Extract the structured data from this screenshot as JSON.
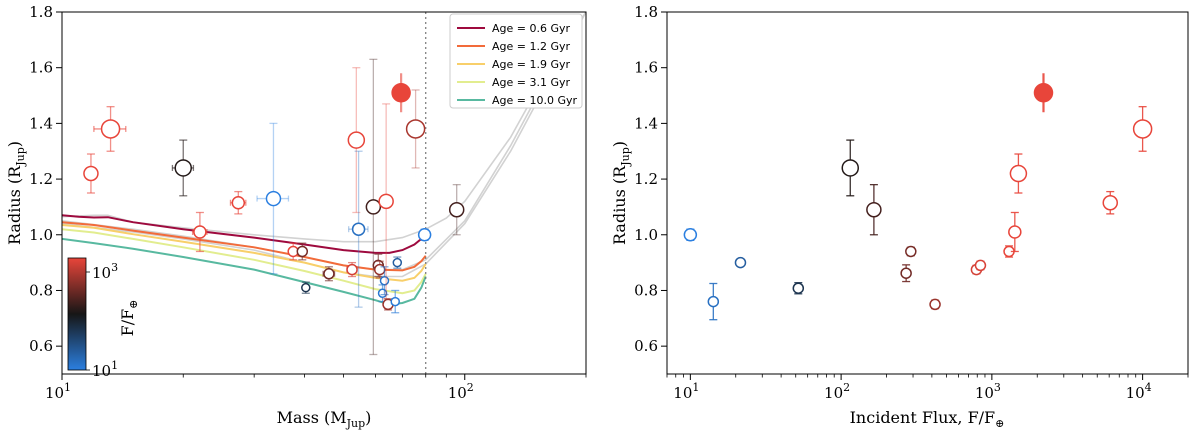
{
  "chart_data": [
    {
      "type": "scatter",
      "x_scale": "log",
      "xlim": [
        10,
        200
      ],
      "ylim": [
        0.5,
        1.8
      ],
      "xlabel_base": "Mass (M",
      "xlabel_sub": "Jup",
      "xlabel_end": ")",
      "ylabel_base": "Radius (R",
      "ylabel_sub": "Jup",
      "ylabel_end": ")",
      "x_ticks": [
        {
          "value": 10,
          "base": "10",
          "exp": "1"
        },
        {
          "value": 100,
          "base": "10",
          "exp": "2"
        }
      ],
      "y_ticks": [
        "0.6",
        "0.8",
        "1.0",
        "1.2",
        "1.4",
        "1.6",
        "1.8"
      ],
      "vline_x": 80,
      "legend_position": "top-right",
      "isochrones": [
        {
          "name": "Age = 0.6 Gyr",
          "color": "#9e0a3e",
          "points": [
            [
              10,
              1.07
            ],
            [
              11,
              1.065
            ],
            [
              12,
              1.062
            ],
            [
              13,
              1.063
            ],
            [
              15,
              1.045
            ],
            [
              20,
              1.02
            ],
            [
              30,
              0.99
            ],
            [
              40,
              0.965
            ],
            [
              50,
              0.945
            ],
            [
              60,
              0.935
            ],
            [
              65,
              0.935
            ],
            [
              70,
              0.945
            ],
            [
              75,
              0.965
            ],
            [
              78,
              0.985
            ],
            [
              80,
              1.0
            ]
          ]
        },
        {
          "name": "Age = 1.2 Gyr",
          "color": "#f26b3a",
          "points": [
            [
              10,
              1.045
            ],
            [
              12,
              1.035
            ],
            [
              15,
              1.015
            ],
            [
              20,
              0.99
            ],
            [
              30,
              0.955
            ],
            [
              40,
              0.92
            ],
            [
              50,
              0.89
            ],
            [
              60,
              0.875
            ],
            [
              70,
              0.872
            ],
            [
              75,
              0.885
            ],
            [
              78,
              0.905
            ],
            [
              80,
              0.925
            ]
          ]
        },
        {
          "name": "Age = 1.9 Gyr",
          "color": "#f8cf6a",
          "points": [
            [
              10,
              1.035
            ],
            [
              12,
              1.025
            ],
            [
              15,
              1.002
            ],
            [
              20,
              0.975
            ],
            [
              30,
              0.935
            ],
            [
              40,
              0.9
            ],
            [
              50,
              0.865
            ],
            [
              60,
              0.845
            ],
            [
              70,
              0.835
            ],
            [
              75,
              0.845
            ],
            [
              78,
              0.87
            ],
            [
              80,
              0.895
            ]
          ]
        },
        {
          "name": "Age = 3.1 Gyr",
          "color": "#e2ed8f",
          "points": [
            [
              10,
              1.02
            ],
            [
              12,
              1.008
            ],
            [
              15,
              0.985
            ],
            [
              20,
              0.955
            ],
            [
              30,
              0.91
            ],
            [
              40,
              0.87
            ],
            [
              50,
              0.835
            ],
            [
              60,
              0.805
            ],
            [
              70,
              0.79
            ],
            [
              75,
              0.8
            ],
            [
              78,
              0.83
            ],
            [
              80,
              0.86
            ]
          ]
        },
        {
          "name": "Age = 10.0 Gyr",
          "color": "#58b9a0",
          "points": [
            [
              10,
              0.985
            ],
            [
              12,
              0.97
            ],
            [
              15,
              0.95
            ],
            [
              20,
              0.92
            ],
            [
              30,
              0.875
            ],
            [
              40,
              0.83
            ],
            [
              50,
              0.795
            ],
            [
              60,
              0.765
            ],
            [
              65,
              0.75
            ],
            [
              70,
              0.755
            ],
            [
              75,
              0.77
            ],
            [
              78,
              0.81
            ],
            [
              80,
              0.85
            ]
          ]
        }
      ],
      "gray_tracks": [
        [
          [
            10,
            1.065
          ],
          [
            12,
            1.07
          ],
          [
            13,
            1.07
          ],
          [
            15,
            1.045
          ],
          [
            20,
            1.025
          ],
          [
            30,
            1.0
          ],
          [
            40,
            0.985
          ],
          [
            50,
            0.975
          ],
          [
            60,
            0.975
          ],
          [
            70,
            0.99
          ],
          [
            80,
            1.02
          ],
          [
            90,
            1.06
          ],
          [
            100,
            1.12
          ],
          [
            130,
            1.35
          ],
          [
            165,
            1.62
          ],
          [
            200,
            1.8
          ]
        ],
        [
          [
            10,
            1.05
          ],
          [
            15,
            1.02
          ],
          [
            20,
            0.995
          ],
          [
            30,
            0.955
          ],
          [
            40,
            0.92
          ],
          [
            50,
            0.89
          ],
          [
            60,
            0.875
          ],
          [
            70,
            0.875
          ],
          [
            80,
            0.91
          ],
          [
            100,
            1.05
          ],
          [
            130,
            1.32
          ],
          [
            165,
            1.6
          ],
          [
            200,
            1.8
          ]
        ],
        [
          [
            10,
            1.04
          ],
          [
            15,
            1.01
          ],
          [
            20,
            0.985
          ],
          [
            30,
            0.945
          ],
          [
            40,
            0.9
          ],
          [
            50,
            0.865
          ],
          [
            60,
            0.85
          ],
          [
            70,
            0.85
          ],
          [
            80,
            0.895
          ],
          [
            100,
            1.04
          ],
          [
            130,
            1.3
          ],
          [
            165,
            1.58
          ],
          [
            200,
            1.8
          ]
        ]
      ],
      "colorbar": {
        "label_base": "F/F",
        "label_sub": "⊕",
        "ticks": [
          {
            "base": "10",
            "exp": "3",
            "value": 1000
          },
          {
            "base": "10",
            "exp": "1",
            "value": 10
          }
        ]
      },
      "points": [
        {
          "x": 11.8,
          "y": 1.22,
          "xerr": 0.4,
          "yerr": 0.07,
          "flux": 1400,
          "size": 7
        },
        {
          "x": 13.2,
          "y": 1.38,
          "xerr": 1.2,
          "yerr": 0.08,
          "flux": 10000,
          "size": 9
        },
        {
          "x": 20,
          "y": 1.24,
          "xerr": 1.2,
          "yerr": 0.1,
          "flux": 115,
          "size": 8
        },
        {
          "x": 22,
          "y": 1.01,
          "xerr": 0.9,
          "yerr": 0.07,
          "flux": 1450,
          "size": 6
        },
        {
          "x": 27.4,
          "y": 1.115,
          "xerr": 1.2,
          "yerr": 0.04,
          "flux": 6100,
          "size": 6
        },
        {
          "x": 33.5,
          "y": 1.13,
          "xerr": 3,
          "yerr": 0.27,
          "flux": 10,
          "size": 7
        },
        {
          "x": 37.5,
          "y": 0.94,
          "xerr": 0.7,
          "yerr": 0.03,
          "flux": 1300,
          "size": 5
        },
        {
          "x": 39.5,
          "y": 0.94,
          "xerr": 0.7,
          "yerr": 0.03,
          "flux": 290,
          "size": 5
        },
        {
          "x": 40.3,
          "y": 0.81,
          "xerr": 0.5,
          "yerr": 0.02,
          "flux": 52,
          "size": 4
        },
        {
          "x": 46,
          "y": 0.86,
          "xerr": 1.5,
          "yerr": 0.025,
          "flux": 270,
          "size": 5
        },
        {
          "x": 52.5,
          "y": 0.875,
          "xerr": 1.5,
          "yerr": 0.025,
          "flux": 800,
          "size": 5
        },
        {
          "x": 53.8,
          "y": 1.34,
          "xerr": 1.5,
          "yerr": 0.26,
          "flux": 1550,
          "size": 8
        },
        {
          "x": 54.5,
          "y": 1.02,
          "xerr": 3,
          "yerr": 0.28,
          "flux": 14,
          "size": 6
        },
        {
          "x": 59.3,
          "y": 1.1,
          "xerr": 1.2,
          "yerr": 0.53,
          "flux": 160,
          "size": 7
        },
        {
          "x": 61,
          "y": 0.89,
          "xerr": 1,
          "yerr": 0.04,
          "flux": 270,
          "size": 5
        },
        {
          "x": 61.5,
          "y": 0.875,
          "xerr": 0.8,
          "yerr": 0.03,
          "flux": 400,
          "size": 5
        },
        {
          "x": 62.5,
          "y": 0.79,
          "xerr": 1,
          "yerr": 0.03,
          "flux": 12,
          "size": 4
        },
        {
          "x": 63.2,
          "y": 0.835,
          "xerr": 1,
          "yerr": 0.05,
          "flux": 13,
          "size": 4
        },
        {
          "x": 63.8,
          "y": 1.12,
          "xerr": 1.5,
          "yerr": 0.35,
          "flux": 1200,
          "size": 7
        },
        {
          "x": 64.5,
          "y": 0.75,
          "xerr": 0.6,
          "yerr": 0.02,
          "flux": 420,
          "size": 5
        },
        {
          "x": 67.2,
          "y": 0.76,
          "xerr": 1.4,
          "yerr": 0.04,
          "flux": 11,
          "size": 4
        },
        {
          "x": 68,
          "y": 0.9,
          "xerr": 0.8,
          "yerr": 0.02,
          "flux": 21,
          "size": 4
        },
        {
          "x": 69.5,
          "y": 1.51,
          "xerr": 0,
          "yerr": 0.07,
          "flux": 2200,
          "size": 9,
          "filled": true
        },
        {
          "x": 75.5,
          "y": 1.38,
          "xerr": 2,
          "yerr": 0.14,
          "flux": 500,
          "size": 9
        },
        {
          "x": 79.5,
          "y": 1.0,
          "xerr": 1.5,
          "yerr": 0.02,
          "flux": 10,
          "size": 6
        },
        {
          "x": 95.5,
          "y": 1.09,
          "xerr": 2.5,
          "yerr": 0.09,
          "flux": 165,
          "size": 7
        }
      ]
    },
    {
      "type": "scatter",
      "x_scale": "log",
      "xlim": [
        7,
        20000
      ],
      "ylim": [
        0.5,
        1.8
      ],
      "xlabel_base": "Incident Flux, F/F",
      "xlabel_sub": "⊕",
      "ylabel_base": "Radius (R",
      "ylabel_sub": "Jup",
      "ylabel_end": ")",
      "x_ticks": [
        {
          "value": 10,
          "base": "10",
          "exp": "1"
        },
        {
          "value": 100,
          "base": "10",
          "exp": "2"
        },
        {
          "value": 1000,
          "base": "10",
          "exp": "3"
        },
        {
          "value": 10000,
          "base": "10",
          "exp": "4"
        }
      ],
      "y_ticks": [
        "0.6",
        "0.8",
        "1.0",
        "1.2",
        "1.4",
        "1.6",
        "1.8"
      ],
      "points": [
        {
          "x": 10,
          "y": 1.0,
          "yerr": 0.02,
          "flux": 10,
          "size": 6
        },
        {
          "x": 14.2,
          "y": 0.76,
          "yerr": 0.065,
          "flux": 14,
          "size": 5
        },
        {
          "x": 21.5,
          "y": 0.9,
          "yerr": 0.01,
          "flux": 21,
          "size": 5
        },
        {
          "x": 52,
          "y": 0.808,
          "yerr": 0.02,
          "flux": 52,
          "size": 5
        },
        {
          "x": 115,
          "y": 1.24,
          "yerr": 0.1,
          "flux": 115,
          "size": 8
        },
        {
          "x": 165,
          "y": 1.09,
          "yerr": 0.09,
          "flux": 165,
          "size": 7
        },
        {
          "x": 270,
          "y": 0.862,
          "yerr": 0.03,
          "flux": 270,
          "size": 5
        },
        {
          "x": 290,
          "y": 0.94,
          "yerr": 0.015,
          "flux": 290,
          "size": 5
        },
        {
          "x": 420,
          "y": 0.75,
          "yerr": 0.015,
          "flux": 420,
          "size": 5
        },
        {
          "x": 790,
          "y": 0.875,
          "yerr": 0.015,
          "flux": 790,
          "size": 5
        },
        {
          "x": 840,
          "y": 0.89,
          "yerr": 0.015,
          "flux": 840,
          "size": 5
        },
        {
          "x": 1300,
          "y": 0.94,
          "yerr": 0.02,
          "flux": 1300,
          "size": 5
        },
        {
          "x": 1420,
          "y": 1.01,
          "yerr": 0.07,
          "flux": 1420,
          "size": 6
        },
        {
          "x": 1500,
          "y": 1.22,
          "yerr": 0.07,
          "flux": 1500,
          "size": 8
        },
        {
          "x": 2200,
          "y": 1.51,
          "yerr": 0.07,
          "flux": 2200,
          "size": 9,
          "filled": true
        },
        {
          "x": 6100,
          "y": 1.115,
          "yerr": 0.04,
          "flux": 6100,
          "size": 7
        },
        {
          "x": 10000,
          "y": 1.38,
          "yerr": 0.08,
          "flux": 10000,
          "size": 9
        }
      ]
    }
  ]
}
